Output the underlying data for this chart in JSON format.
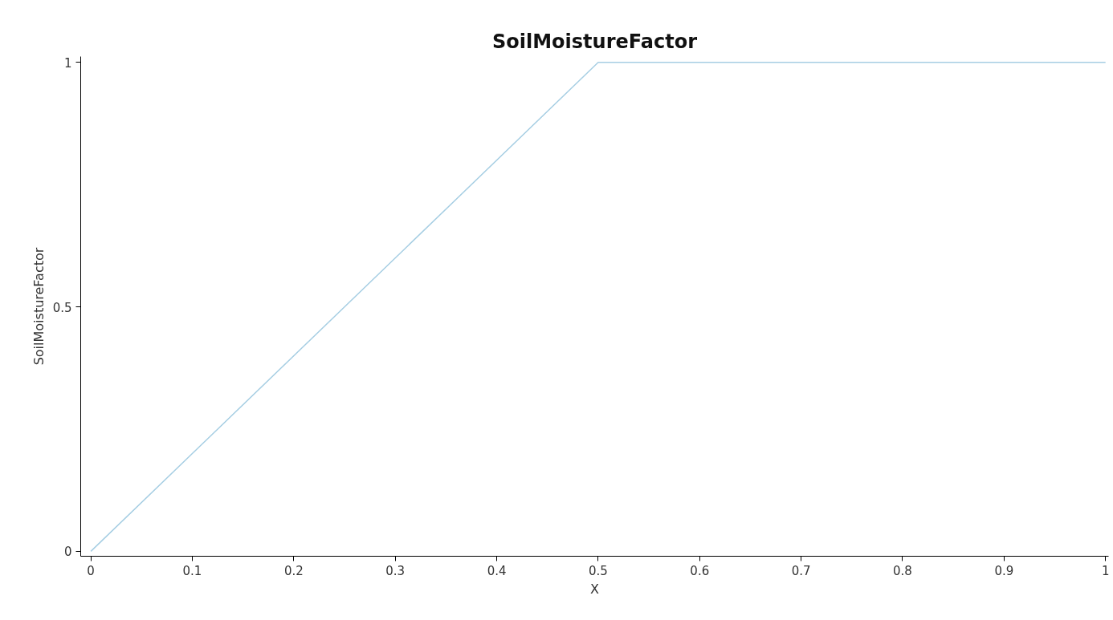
{
  "chart_data": {
    "type": "line",
    "title": "SoilMoistureFactor",
    "xlabel": "X",
    "ylabel": "SoilMoistureFactor",
    "x": [
      0,
      0.5,
      1
    ],
    "series": [
      {
        "color": "#a6cee3",
        "values": [
          0,
          1,
          1
        ]
      }
    ],
    "xlim": [
      -0.01,
      1.003
    ],
    "ylim": [
      -0.01,
      1.012
    ],
    "xticks": [
      0,
      0.1,
      0.2,
      0.3,
      0.4,
      0.5,
      0.6,
      0.7,
      0.8,
      0.9,
      1
    ],
    "yticks": [
      0,
      0.5,
      1
    ],
    "grid": false
  }
}
